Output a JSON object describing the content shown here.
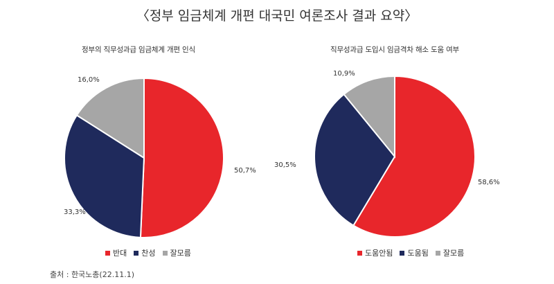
{
  "page_title": "〈정부 임금체계 개편 대국민 여론조사 결과 요약〉",
  "source": "출처 : 한국노총(22.11.1)",
  "chart_data": [
    {
      "type": "pie",
      "title": "정부의 직무성과급 임금체계 개편 인식",
      "slices": [
        {
          "label": "반대",
          "value": 50.7,
          "display": "50,7%",
          "color": "#e8262b"
        },
        {
          "label": "찬성",
          "value": 33.3,
          "display": "33,3%",
          "color": "#1f2a5c"
        },
        {
          "label": "잘모름",
          "value": 16.0,
          "display": "16,0%",
          "color": "#a6a6a6"
        }
      ],
      "legend_position": "bottom"
    },
    {
      "type": "pie",
      "title": "직무성과급 도입시 임금격차 해소 도움 여부",
      "slices": [
        {
          "label": "도움안됨",
          "value": 58.6,
          "display": "58,6%",
          "color": "#e8262b"
        },
        {
          "label": "도움됨",
          "value": 30.5,
          "display": "30,5%",
          "color": "#1f2a5c"
        },
        {
          "label": "잘모름",
          "value": 10.9,
          "display": "10,9%",
          "color": "#a6a6a6"
        }
      ],
      "legend_position": "bottom"
    }
  ]
}
